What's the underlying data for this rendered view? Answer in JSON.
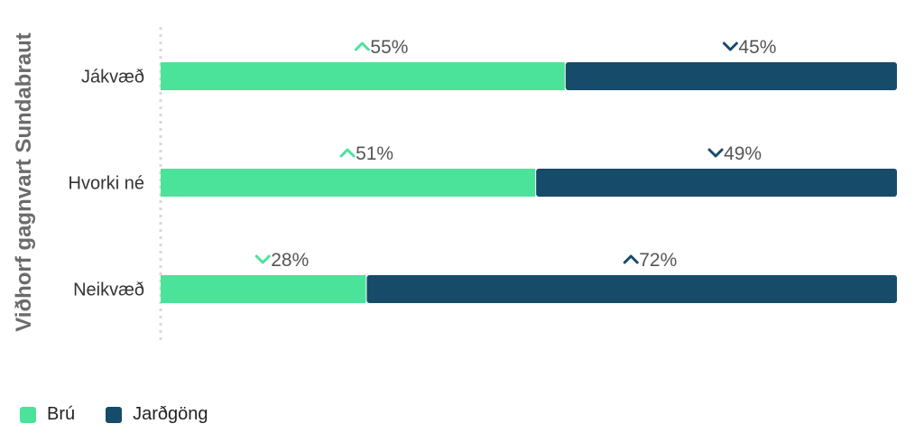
{
  "chart_data": {
    "type": "bar",
    "orientation": "horizontal",
    "stacked": true,
    "ylabel": "Viðhorf gagnvart Sundabraut",
    "categories": [
      "Jákvæð",
      "Hvorki né",
      "Neikvæð"
    ],
    "series": [
      {
        "name": "Brú",
        "values": [
          55,
          51,
          28
        ],
        "color": "#4be39a",
        "indicators": [
          "up",
          "up",
          "down"
        ],
        "labels": [
          "55%",
          "51%",
          "28%"
        ]
      },
      {
        "name": "Jarðgöng",
        "values": [
          45,
          49,
          72
        ],
        "color": "#174b6a",
        "indicators": [
          "down",
          "down",
          "up"
        ],
        "labels": [
          "45%",
          "49%",
          "72%"
        ]
      }
    ],
    "xlim": [
      0,
      100
    ],
    "grid": false,
    "legend_position": "bottom-left"
  }
}
